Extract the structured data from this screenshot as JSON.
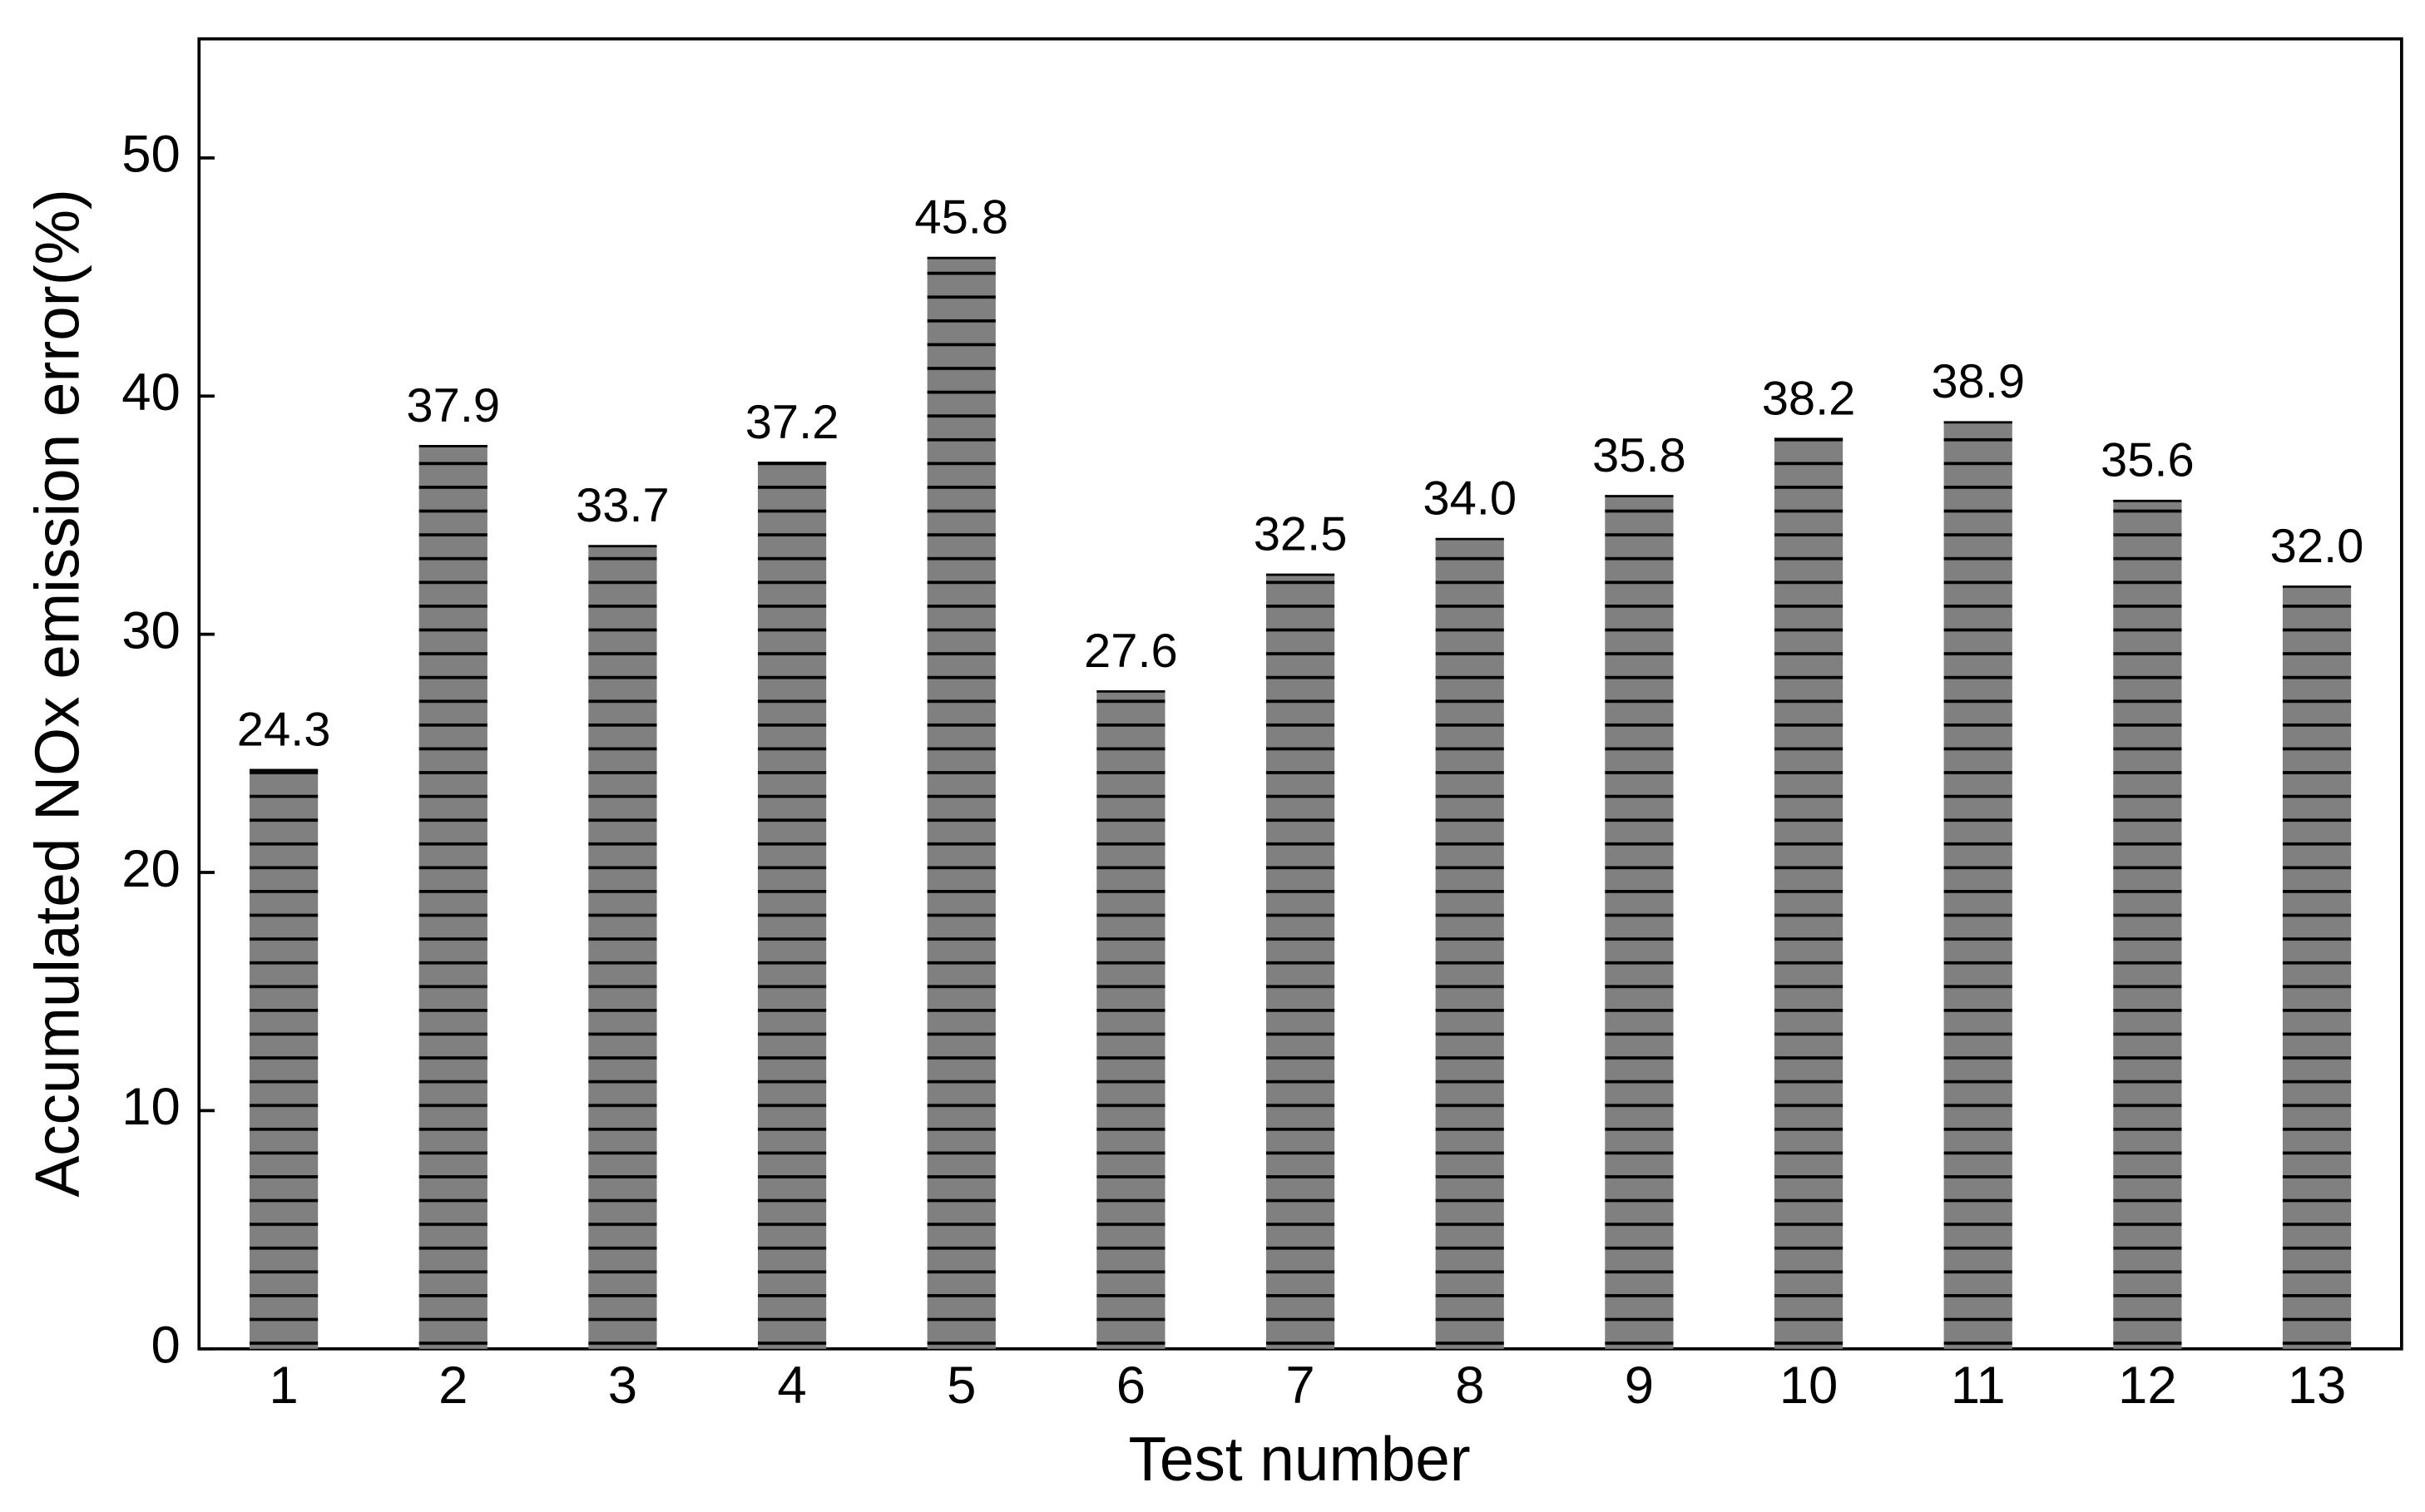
{
  "chart_data": {
    "type": "bar",
    "xlabel": "Test number",
    "ylabel": "Accumulated NOx emission error(%)",
    "categories": [
      "1",
      "2",
      "3",
      "4",
      "5",
      "6",
      "7",
      "8",
      "9",
      "10",
      "11",
      "12",
      "13"
    ],
    "values": [
      24.3,
      37.9,
      33.7,
      37.2,
      45.8,
      27.6,
      32.5,
      34.0,
      35.8,
      38.2,
      38.9,
      35.6,
      32.0
    ],
    "value_labels": [
      "24.3",
      "37.9",
      "33.7",
      "37.2",
      "45.8",
      "27.6",
      "32.5",
      "34.0",
      "35.8",
      "38.2",
      "38.9",
      "35.6",
      "32.0"
    ],
    "color": "#808080",
    "hatch": "horizontal",
    "ylim": [
      0,
      55
    ],
    "yticks": [
      0,
      10,
      20,
      30,
      40,
      50
    ],
    "grid": false
  }
}
